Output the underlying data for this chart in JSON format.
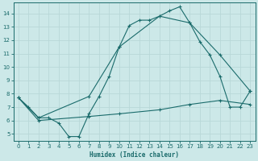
{
  "xlabel": "Humidex (Indice chaleur)",
  "bg_color": "#cce8e8",
  "grid_color": "#aacccc",
  "line_color": "#1a6b6b",
  "xlim": [
    -0.5,
    23.5
  ],
  "ylim": [
    4.5,
    14.8
  ],
  "yticks": [
    5,
    6,
    7,
    8,
    9,
    10,
    11,
    12,
    13,
    14
  ],
  "xticks": [
    0,
    1,
    2,
    3,
    4,
    5,
    6,
    7,
    8,
    9,
    10,
    11,
    12,
    13,
    14,
    15,
    16,
    17,
    18,
    19,
    20,
    21,
    22,
    23
  ],
  "line1_x": [
    0,
    1,
    2,
    3,
    4,
    5,
    6,
    7,
    8,
    9,
    10,
    11,
    12,
    13,
    14,
    15,
    16,
    17,
    18,
    19,
    20,
    21,
    22,
    23
  ],
  "line1_y": [
    7.7,
    7.0,
    6.2,
    6.2,
    5.8,
    4.8,
    4.8,
    6.5,
    7.8,
    9.3,
    11.5,
    13.1,
    13.5,
    13.5,
    13.8,
    14.2,
    14.5,
    13.3,
    11.9,
    10.9,
    9.3,
    7.0,
    7.0,
    8.2
  ],
  "line2_x": [
    0,
    2,
    7,
    10,
    14,
    17,
    20,
    23
  ],
  "line2_y": [
    7.7,
    6.2,
    7.8,
    11.5,
    13.8,
    13.3,
    10.9,
    8.2
  ],
  "line3_x": [
    0,
    2,
    7,
    10,
    14,
    17,
    20,
    23
  ],
  "line3_y": [
    7.7,
    6.0,
    6.3,
    6.5,
    6.8,
    7.2,
    7.5,
    7.2
  ]
}
